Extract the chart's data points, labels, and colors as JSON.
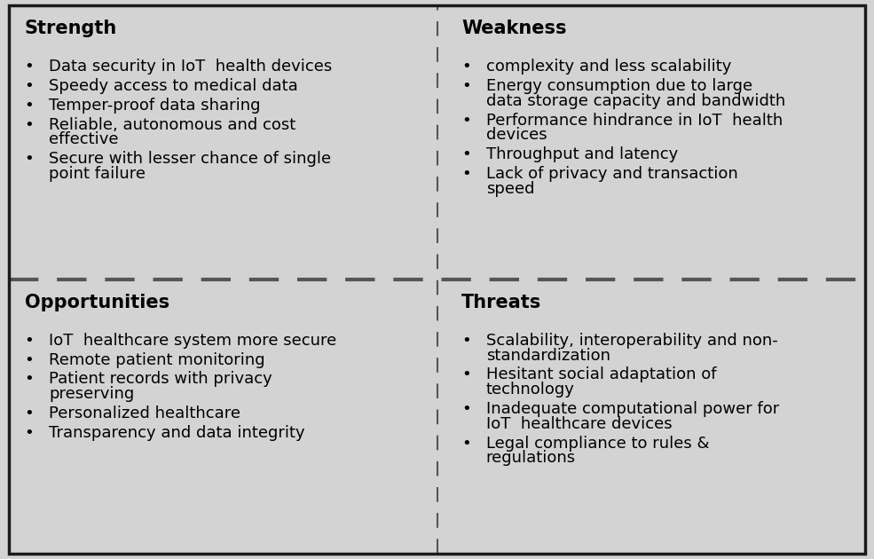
{
  "bg_color": "#d3d3d3",
  "border_color": "#1a1a1a",
  "divider_color": "#555555",
  "text_color": "#000000",
  "quadrants": [
    {
      "title": "Strength",
      "items": [
        [
          "Data security in IoT  health devices"
        ],
        [
          "Speedy access to medical data"
        ],
        [
          "Temper-proof data sharing"
        ],
        [
          "Reliable, autonomous and cost",
          "effective"
        ],
        [
          "Secure with lesser chance of single",
          "point failure"
        ]
      ],
      "pos": "TL"
    },
    {
      "title": "Weakness",
      "items": [
        [
          "complexity and less scalability"
        ],
        [
          "Energy consumption due to large",
          "data storage capacity and bandwidth"
        ],
        [
          "Performance hindrance in IoT  health",
          "devices"
        ],
        [
          "Throughput and latency"
        ],
        [
          "Lack of privacy and transaction",
          "speed"
        ]
      ],
      "pos": "TR"
    },
    {
      "title": "Opportunities",
      "items": [
        [
          "IoT  healthcare system more secure"
        ],
        [
          "Remote patient monitoring"
        ],
        [
          "Patient records with privacy",
          "preserving"
        ],
        [
          "Personalized healthcare"
        ],
        [
          "Transparency and data integrity"
        ]
      ],
      "pos": "BL"
    },
    {
      "title": "Threats",
      "items": [
        [
          "Scalability, interoperability and non-",
          "standardization"
        ],
        [
          "Hesitant social adaptation of",
          "technology"
        ],
        [
          "Inadequate computational power for",
          "IoT  healthcare devices"
        ],
        [
          "Legal compliance to rules &",
          "regulations"
        ]
      ],
      "pos": "BR"
    }
  ],
  "title_fontsize": 15,
  "body_fontsize": 13,
  "figsize": [
    9.85,
    6.3
  ],
  "dpi": 100
}
